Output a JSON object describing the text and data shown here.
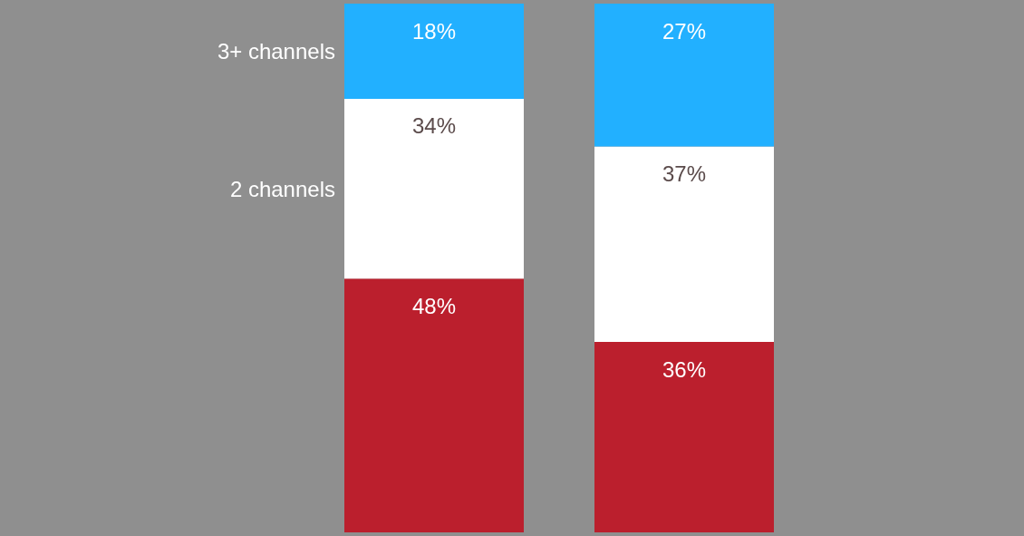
{
  "chart_data": {
    "type": "bar",
    "stacked": true,
    "categories": [
      null,
      null
    ],
    "series": [
      {
        "color": "#bb1f2d",
        "values": [
          48,
          36
        ],
        "value_labels": [
          "48%",
          "36%"
        ]
      },
      {
        "name": "2 channels",
        "color": "#ffffff",
        "values": [
          34,
          37
        ],
        "value_labels": [
          "34%",
          "37%"
        ]
      },
      {
        "name": "3+ channels",
        "color": "#22b0ff",
        "values": [
          18,
          27
        ],
        "value_labels": [
          "18%",
          "27%"
        ]
      }
    ]
  }
}
